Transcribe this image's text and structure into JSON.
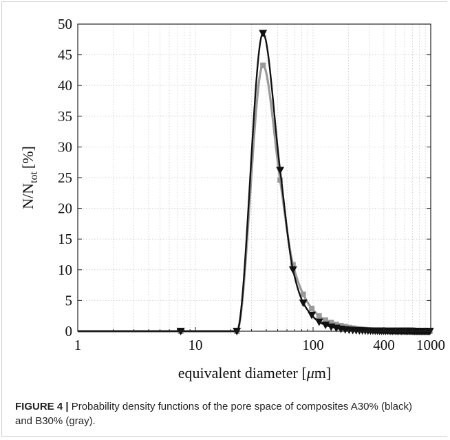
{
  "chart_data": {
    "type": "line",
    "xscale": "log",
    "xlim": [
      1,
      1000
    ],
    "ylim": [
      0,
      50
    ],
    "xticks": [
      1,
      10,
      100,
      400,
      1000
    ],
    "xtick_labels": [
      "1",
      "10",
      "100",
      "400",
      "1000"
    ],
    "yticks": [
      0,
      5,
      10,
      15,
      20,
      25,
      30,
      35,
      40,
      45,
      50
    ],
    "ytick_labels": [
      "0",
      "5",
      "10",
      "15",
      "20",
      "25",
      "30",
      "35",
      "40",
      "45",
      "50"
    ],
    "ylabel_main": "N/N",
    "ylabel_sub": "tot",
    "ylabel_unit": "[%]",
    "xlabel_main": "equivalent diameter [",
    "xlabel_mu": "μ",
    "xlabel_unit": "m]",
    "grid": true,
    "series": [
      {
        "color": "#111111",
        "marker": "triangle-down",
        "x": [
          7.5,
          22.5,
          37.5,
          52.5,
          67.5,
          82.5,
          97.5,
          112.5,
          127.5,
          142.5,
          157.5,
          172.5,
          187.5,
          202.5,
          217.5,
          232.5,
          247.5,
          262.5,
          277.5,
          292.5,
          307.5,
          322.5,
          337.5,
          352.5,
          367.5,
          382.5,
          397.5,
          412.5,
          427.5,
          442.5,
          457.5,
          472.5,
          487.5,
          502.5,
          517.5,
          532.5,
          547.5,
          562.5,
          577.5,
          592.5,
          607.5,
          622.5,
          637.5,
          652.5,
          667.5,
          682.5,
          697.5,
          712.5,
          727.5,
          742.5,
          757.5,
          772.5,
          787.5,
          802.5,
          817.5,
          832.5,
          847.5,
          862.5,
          877.5,
          892.5,
          907.5,
          922.5,
          937.5,
          952.5,
          967.5,
          982.5
        ],
        "y": [
          0,
          0,
          48.5,
          26.2,
          10.0,
          4.6,
          2.6,
          1.5,
          1.0,
          0.7,
          0.5,
          0.35,
          0.25,
          0.2,
          0.15,
          0.12,
          0.1,
          0.08,
          0.07,
          0.06,
          0.05,
          0.05,
          0.04,
          0.04,
          0.03,
          0.03,
          0.03,
          0.02,
          0.02,
          0.02,
          0.02,
          0.02,
          0.02,
          0.01,
          0.01,
          0.01,
          0.01,
          0.01,
          0.01,
          0.01,
          0.01,
          0.01,
          0.01,
          0.01,
          0.01,
          0.01,
          0.01,
          0,
          0,
          0,
          0,
          0,
          0,
          0,
          0,
          0,
          0,
          0,
          0,
          0,
          0,
          0,
          0,
          0,
          0,
          0
        ]
      },
      {
        "color": "#9a9a9a",
        "marker": "square",
        "x": [
          7.5,
          22.5,
          37.5,
          52.5,
          67.5,
          82.5,
          97.5,
          112.5,
          127.5,
          142.5,
          157.5,
          172.5,
          187.5,
          202.5,
          217.5,
          232.5,
          247.5,
          262.5,
          277.5,
          292.5,
          307.5,
          322.5,
          337.5,
          352.5,
          367.5,
          382.5,
          397.5,
          412.5,
          427.5,
          442.5,
          457.5,
          472.5,
          487.5,
          502.5,
          517.5,
          532.5,
          547.5,
          562.5,
          577.5,
          592.5,
          607.5,
          622.5,
          637.5,
          652.5,
          667.5,
          682.5,
          697.5,
          712.5,
          727.5,
          742.5,
          757.5,
          772.5,
          787.5,
          802.5,
          817.5,
          832.5,
          847.5,
          862.5,
          877.5,
          892.5,
          907.5,
          922.5,
          937.5,
          952.5,
          967.5,
          982.5
        ],
        "y": [
          0,
          0,
          43.3,
          24.6,
          10.8,
          6.0,
          3.7,
          2.5,
          1.8,
          1.4,
          1.1,
          0.9,
          0.75,
          0.6,
          0.5,
          0.42,
          0.36,
          0.3,
          0.26,
          0.22,
          0.19,
          0.17,
          0.15,
          0.13,
          0.12,
          0.11,
          0.1,
          0.09,
          0.08,
          0.07,
          0.07,
          0.06,
          0.06,
          0.05,
          0.05,
          0.05,
          0.04,
          0.04,
          0.04,
          0.04,
          0.03,
          0.03,
          0.03,
          0.03,
          0.03,
          0.02,
          0.02,
          0.02,
          0.02,
          0.02,
          0.02,
          0.02,
          0.02,
          0.01,
          0.01,
          0.01,
          0.01,
          0.01,
          0.01,
          0.01,
          0.01,
          0.01,
          0.01,
          0.01,
          0.01,
          0.01
        ]
      }
    ]
  },
  "caption": {
    "label": "FIGURE 4 |",
    "text": " Probability density functions of the pore space of composites A30% (black) and B30% (gray)."
  }
}
